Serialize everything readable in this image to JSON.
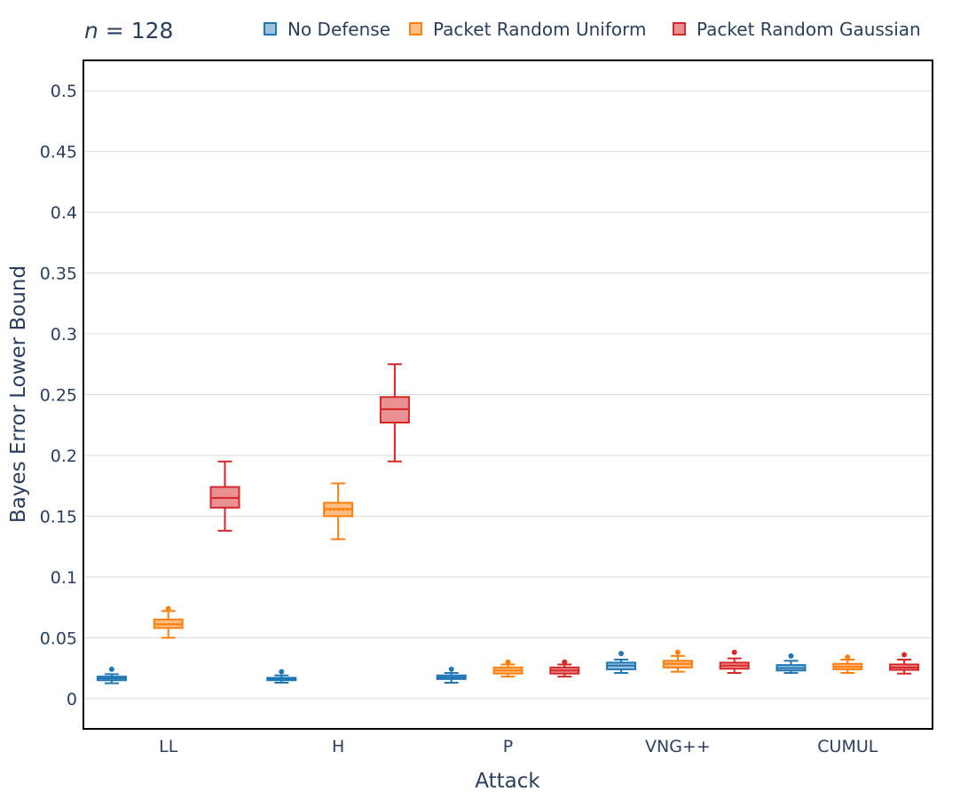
{
  "title": {
    "var": "n",
    "rest": " = 128"
  },
  "chart_data": {
    "type": "box",
    "xlabel": "Attack",
    "ylabel": "Bayes Error Lower Bound",
    "categories": [
      "LL",
      "H",
      "P",
      "VNG++",
      "CUMUL"
    ],
    "ylim": [
      -0.025,
      0.525
    ],
    "yticks": [
      0,
      0.05,
      0.1,
      0.15,
      0.2,
      0.25,
      0.3,
      0.35,
      0.4,
      0.45,
      0.5
    ],
    "ytick_labels": [
      "0",
      "0.05",
      "0.1",
      "0.15",
      "0.2",
      "0.25",
      "0.3",
      "0.35",
      "0.4",
      "0.45",
      "0.5"
    ],
    "grid": true,
    "legend_position": "top-right",
    "series": [
      {
        "name": "No Defense",
        "color": "#1f77b4",
        "fill": "#9ec1dd",
        "boxes": [
          {
            "category": "LL",
            "min": 0.0125,
            "q1": 0.015,
            "median": 0.0165,
            "mean": 0.0165,
            "q3": 0.018,
            "max": 0.02,
            "outliers": [
              0.024
            ]
          },
          {
            "category": "H",
            "min": 0.013,
            "q1": 0.015,
            "median": 0.016,
            "mean": 0.016,
            "q3": 0.017,
            "max": 0.019,
            "outliers": [
              0.022
            ]
          },
          {
            "category": "P",
            "min": 0.013,
            "q1": 0.016,
            "median": 0.0175,
            "mean": 0.0175,
            "q3": 0.019,
            "max": 0.021,
            "outliers": [
              0.024
            ]
          },
          {
            "category": "VNG++",
            "min": 0.021,
            "q1": 0.024,
            "median": 0.027,
            "mean": 0.027,
            "q3": 0.0295,
            "max": 0.032,
            "outliers": [
              0.037
            ]
          },
          {
            "category": "CUMUL",
            "min": 0.021,
            "q1": 0.023,
            "median": 0.025,
            "mean": 0.025,
            "q3": 0.0275,
            "max": 0.031,
            "outliers": [
              0.035
            ]
          }
        ]
      },
      {
        "name": "Packet Random Uniform",
        "color": "#ff7f0e",
        "fill": "#ffbf86",
        "boxes": [
          {
            "category": "LL",
            "min": 0.05,
            "q1": 0.058,
            "median": 0.061,
            "mean": 0.0615,
            "q3": 0.065,
            "max": 0.072,
            "outliers": [
              0.074
            ]
          },
          {
            "category": "H",
            "min": 0.131,
            "q1": 0.15,
            "median": 0.156,
            "mean": 0.155,
            "q3": 0.161,
            "max": 0.177,
            "outliers": []
          },
          {
            "category": "P",
            "min": 0.018,
            "q1": 0.0205,
            "median": 0.023,
            "mean": 0.023,
            "q3": 0.0255,
            "max": 0.028,
            "outliers": [
              0.03
            ]
          },
          {
            "category": "VNG++",
            "min": 0.022,
            "q1": 0.0255,
            "median": 0.0285,
            "mean": 0.0285,
            "q3": 0.031,
            "max": 0.035,
            "outliers": [
              0.038
            ]
          },
          {
            "category": "CUMUL",
            "min": 0.021,
            "q1": 0.024,
            "median": 0.026,
            "mean": 0.026,
            "q3": 0.0285,
            "max": 0.032,
            "outliers": [
              0.034
            ]
          }
        ]
      },
      {
        "name": "Packet Random Gaussian",
        "color": "#d62728",
        "fill": "#ea9293",
        "boxes": [
          {
            "category": "LL",
            "min": 0.138,
            "q1": 0.157,
            "median": 0.165,
            "mean": 0.165,
            "q3": 0.174,
            "max": 0.195,
            "outliers": []
          },
          {
            "category": "H",
            "min": 0.195,
            "q1": 0.227,
            "median": 0.238,
            "mean": 0.238,
            "q3": 0.248,
            "max": 0.275,
            "outliers": []
          },
          {
            "category": "P",
            "min": 0.018,
            "q1": 0.0205,
            "median": 0.023,
            "mean": 0.023,
            "q3": 0.0255,
            "max": 0.028,
            "outliers": [
              0.03
            ]
          },
          {
            "category": "VNG++",
            "min": 0.021,
            "q1": 0.0245,
            "median": 0.027,
            "mean": 0.027,
            "q3": 0.0295,
            "max": 0.033,
            "outliers": [
              0.038
            ]
          },
          {
            "category": "CUMUL",
            "min": 0.0205,
            "q1": 0.0235,
            "median": 0.0255,
            "mean": 0.0255,
            "q3": 0.028,
            "max": 0.032,
            "outliers": [
              0.036
            ]
          }
        ]
      }
    ]
  }
}
